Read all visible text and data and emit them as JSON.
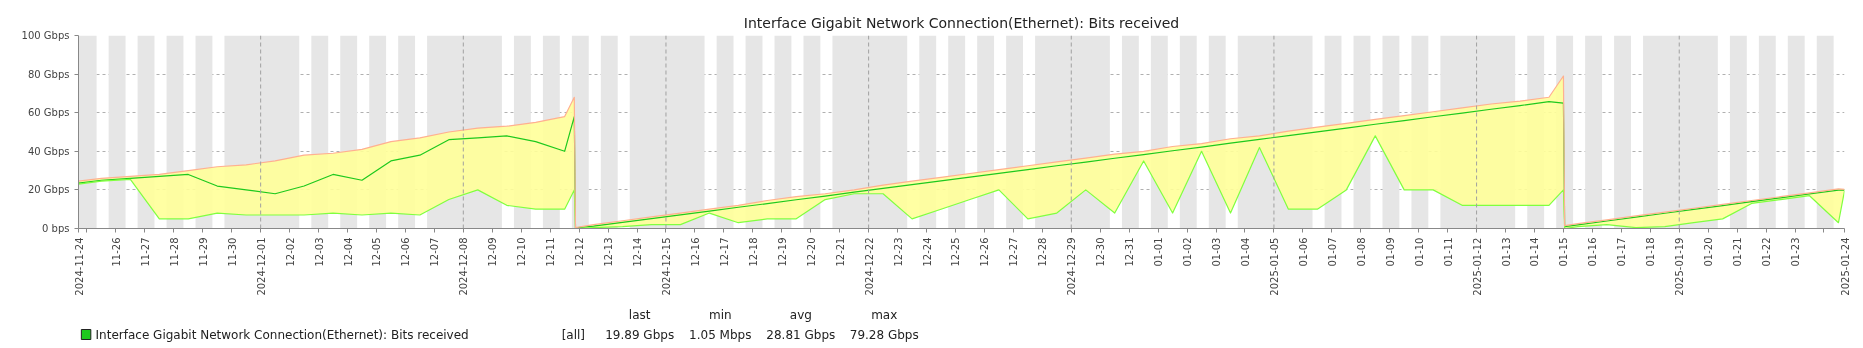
{
  "chart_data": {
    "type": "line",
    "title": "Interface Gigabit Network Connection(Ethernet): Bits received",
    "xlim": [
      "2024-11-24T17:00",
      "2025-01-24T17:00"
    ],
    "xticks": [
      {
        "value": "2024-11-24T17:00",
        "label": "2024-11-24"
      },
      {
        "value": "2024-11-25",
        "label": null
      },
      {
        "value": "2024-11-26",
        "label": "11-26"
      },
      {
        "value": "2024-11-27",
        "label": "11-27"
      },
      {
        "value": "2024-11-28",
        "label": "11-28"
      },
      {
        "value": "2024-11-29",
        "label": "11-29"
      },
      {
        "value": "2024-11-30",
        "label": "11-30"
      },
      {
        "value": "2024-12-01",
        "label": "2024-12-01"
      },
      {
        "value": "2024-12-02",
        "label": "12-02"
      },
      {
        "value": "2024-12-03",
        "label": "12-03"
      },
      {
        "value": "2024-12-04",
        "label": "12-04"
      },
      {
        "value": "2024-12-05",
        "label": "12-05"
      },
      {
        "value": "2024-12-06",
        "label": "12-06"
      },
      {
        "value": "2024-12-07",
        "label": "12-07"
      },
      {
        "value": "2024-12-08",
        "label": "2024-12-08"
      },
      {
        "value": "2024-12-09",
        "label": "12-09"
      },
      {
        "value": "2024-12-10",
        "label": "12-10"
      },
      {
        "value": "2024-12-11",
        "label": "12-11"
      },
      {
        "value": "2024-12-12",
        "label": "12-12"
      },
      {
        "value": "2024-12-13",
        "label": "12-13"
      },
      {
        "value": "2024-12-14",
        "label": "12-14"
      },
      {
        "value": "2024-12-15",
        "label": "2024-12-15"
      },
      {
        "value": "2024-12-16",
        "label": "12-16"
      },
      {
        "value": "2024-12-17",
        "label": "12-17"
      },
      {
        "value": "2024-12-18",
        "label": "12-18"
      },
      {
        "value": "2024-12-19",
        "label": "12-19"
      },
      {
        "value": "2024-12-20",
        "label": "12-20"
      },
      {
        "value": "2024-12-21",
        "label": "12-21"
      },
      {
        "value": "2024-12-22",
        "label": "2024-12-22"
      },
      {
        "value": "2024-12-23",
        "label": "12-23"
      },
      {
        "value": "2024-12-24",
        "label": "12-24"
      },
      {
        "value": "2024-12-25",
        "label": "12-25"
      },
      {
        "value": "2024-12-26",
        "label": "12-26"
      },
      {
        "value": "2024-12-27",
        "label": "12-27"
      },
      {
        "value": "2024-12-28",
        "label": "12-28"
      },
      {
        "value": "2024-12-29",
        "label": "2024-12-29"
      },
      {
        "value": "2024-12-30",
        "label": "12-30"
      },
      {
        "value": "2024-12-31",
        "label": "12-31"
      },
      {
        "value": "2025-01-01",
        "label": "01-01"
      },
      {
        "value": "2025-01-02",
        "label": "01-02"
      },
      {
        "value": "2025-01-03",
        "label": "01-03"
      },
      {
        "value": "2025-01-04",
        "label": "01-04"
      },
      {
        "value": "2025-01-05",
        "label": "2025-01-05"
      },
      {
        "value": "2025-01-06",
        "label": "01-06"
      },
      {
        "value": "2025-01-07",
        "label": "01-07"
      },
      {
        "value": "2025-01-08",
        "label": "01-08"
      },
      {
        "value": "2025-01-09",
        "label": "01-09"
      },
      {
        "value": "2025-01-10",
        "label": "01-10"
      },
      {
        "value": "2025-01-11",
        "label": "01-11"
      },
      {
        "value": "2025-01-12",
        "label": "2025-01-12"
      },
      {
        "value": "2025-01-13",
        "label": "01-13"
      },
      {
        "value": "2025-01-14",
        "label": "01-14"
      },
      {
        "value": "2025-01-15",
        "label": "01-15"
      },
      {
        "value": "2025-01-16",
        "label": "01-16"
      },
      {
        "value": "2025-01-17",
        "label": "01-17"
      },
      {
        "value": "2025-01-18",
        "label": "01-18"
      },
      {
        "value": "2025-01-19",
        "label": "2025-01-19"
      },
      {
        "value": "2025-01-20",
        "label": "01-20"
      },
      {
        "value": "2025-01-21",
        "label": "01-21"
      },
      {
        "value": "2025-01-22",
        "label": "01-22"
      },
      {
        "value": "2025-01-23",
        "label": "01-23"
      },
      {
        "value": "2025-01-24",
        "label": null
      },
      {
        "value": "2025-01-24T17:00",
        "label": "2025-01-24"
      }
    ],
    "ylim": [
      0,
      100
    ],
    "yticks": [
      {
        "value": 0,
        "label": "0 bps"
      },
      {
        "value": 20,
        "label": "20 Gbps"
      },
      {
        "value": 40,
        "label": "40 Gbps"
      },
      {
        "value": 60,
        "label": "60 Gbps"
      },
      {
        "value": 80,
        "label": "80 Gbps"
      },
      {
        "value": 100,
        "label": "100 Gbps"
      }
    ],
    "grid": "y",
    "legend": "bottom",
    "line_style": "solid",
    "x": [
      "2024-11-24T17:00",
      "2024-11-25T12:00",
      "2024-11-26T12:00",
      "2024-11-27T12:00",
      "2024-11-28T12:00",
      "2024-11-29T12:00",
      "2024-11-30T12:00",
      "2024-12-01T12:00",
      "2024-12-02T12:00",
      "2024-12-03T12:00",
      "2024-12-04T12:00",
      "2024-12-05T12:00",
      "2024-12-06T12:00",
      "2024-12-07T12:00",
      "2024-12-08T12:00",
      "2024-12-09T12:00",
      "2024-12-10T12:00",
      "2024-12-11T12:00",
      "2024-12-11T20:00",
      "2024-12-11T21:00",
      "2024-12-12T12:00",
      "2024-12-13T12:00",
      "2024-12-14T12:00",
      "2024-12-15T12:00",
      "2024-12-16T12:00",
      "2024-12-17T12:00",
      "2024-12-18T12:00",
      "2024-12-19T12:00",
      "2024-12-20T12:00",
      "2024-12-21T12:00",
      "2024-12-22T12:00",
      "2024-12-23T12:00",
      "2024-12-24T12:00",
      "2024-12-25T12:00",
      "2024-12-26T12:00",
      "2024-12-27T12:00",
      "2024-12-28T12:00",
      "2024-12-29T12:00",
      "2024-12-30T12:00",
      "2024-12-31T12:00",
      "2025-01-01T12:00",
      "2025-01-02T12:00",
      "2025-01-03T12:00",
      "2025-01-04T12:00",
      "2025-01-05T12:00",
      "2025-01-06T12:00",
      "2025-01-07T12:00",
      "2025-01-08T12:00",
      "2025-01-09T12:00",
      "2025-01-10T12:00",
      "2025-01-11T12:00",
      "2025-01-12T12:00",
      "2025-01-13T12:00",
      "2025-01-14T12:00",
      "2025-01-15T00:00",
      "2025-01-15T01:00",
      "2025-01-15T12:00",
      "2025-01-16T12:00",
      "2025-01-17T12:00",
      "2025-01-18T12:00",
      "2025-01-19T12:00",
      "2025-01-20T12:00",
      "2025-01-21T12:00",
      "2025-01-22T12:00",
      "2025-01-23T12:00",
      "2025-01-24T12:00",
      "2025-01-24T17:00"
    ],
    "series": [
      {
        "name": "Interface Gigabit Network Connection(Ethernet): Bits received",
        "color": "#1ec91e",
        "values": [
          23.5,
          25,
          26,
          27,
          28,
          22,
          20,
          18,
          22,
          28,
          25,
          35,
          38,
          46,
          47,
          48,
          45,
          40,
          58,
          0.3,
          1.2,
          3.2,
          5.1,
          7.1,
          9,
          11,
          12.9,
          14.9,
          16.8,
          18.8,
          20.8,
          22.7,
          24.7,
          26.6,
          28.6,
          30.5,
          32.5,
          34.4,
          36.4,
          38.3,
          40.3,
          42.2,
          44.2,
          46.2,
          48.1,
          50.1,
          52,
          54,
          55.9,
          57.9,
          59.8,
          61.8,
          63.7,
          65.7,
          65,
          1,
          1.9,
          3.9,
          5.9,
          7.9,
          9.9,
          11.9,
          13.9,
          15.9,
          17.9,
          19.9,
          19.9
        ],
        "lower": [
          23,
          24.5,
          25.5,
          5,
          5,
          8,
          7,
          7,
          7,
          8,
          7,
          8,
          7,
          15,
          20,
          12,
          10,
          10,
          20,
          0,
          0.5,
          1,
          2,
          2,
          8,
          3,
          5,
          5,
          15,
          18,
          18,
          5,
          10,
          15,
          20,
          5,
          8,
          20,
          8,
          35,
          8,
          40,
          8,
          42,
          10,
          10,
          20,
          48,
          20,
          20,
          12,
          12,
          12,
          12,
          20,
          0,
          1,
          2,
          0.5,
          1,
          3,
          5,
          13,
          15,
          17,
          3,
          19.5
        ],
        "upper": [
          24.5,
          26,
          27,
          28,
          30,
          32,
          33,
          35,
          38,
          39,
          41,
          45,
          47,
          50,
          52,
          53,
          55,
          58,
          68,
          0.5,
          2,
          4,
          6,
          8,
          10,
          12,
          14.5,
          16.5,
          18,
          20,
          22.5,
          24.5,
          26.5,
          28.5,
          30.5,
          32.5,
          34.5,
          36.5,
          38.5,
          40,
          42.5,
          44,
          46.5,
          48,
          50.5,
          52.5,
          54.5,
          56.5,
          58.5,
          60.5,
          62.5,
          64.5,
          66,
          68,
          79,
          1.5,
          2.5,
          4.5,
          6.5,
          8.5,
          10.5,
          12.5,
          14.5,
          16.5,
          18.5,
          20.5,
          20.3
        ]
      },
      {
        "color": "#80ff40",
        "values": [
          23,
          24.5,
          25.5,
          5,
          5,
          8,
          7,
          7,
          7,
          8,
          7,
          8,
          7,
          15,
          20,
          12,
          10,
          10,
          20,
          0,
          0.5,
          1,
          2,
          2,
          8,
          3,
          5,
          5,
          15,
          18,
          18,
          5,
          10,
          15,
          20,
          5,
          8,
          20,
          8,
          35,
          8,
          40,
          8,
          42,
          10,
          10,
          20,
          48,
          20,
          20,
          12,
          12,
          12,
          12,
          20,
          0,
          1,
          2,
          0.5,
          1,
          3,
          5,
          13,
          15,
          17,
          3,
          19.5
        ]
      },
      {
        "color": "#ffb090",
        "values": [
          24.5,
          26,
          27,
          28,
          30,
          32,
          33,
          35,
          38,
          39,
          41,
          45,
          47,
          50,
          52,
          53,
          55,
          58,
          68,
          0.5,
          2,
          4,
          6,
          8,
          10,
          12,
          14.5,
          16.5,
          18,
          20,
          22.5,
          24.5,
          26.5,
          28.5,
          30.5,
          32.5,
          34.5,
          36.5,
          38.5,
          40,
          42.5,
          44,
          46.5,
          48,
          50.5,
          52.5,
          54.5,
          56.5,
          58.5,
          60.5,
          62.5,
          64.5,
          66,
          68,
          79,
          1.5,
          2.5,
          4.5,
          6.5,
          8.5,
          10.5,
          12.5,
          14.5,
          16.5,
          18.5,
          20.5,
          20.3
        ]
      }
    ],
    "ref_lines": [
      {
        "axis": "x",
        "value": "2024-12-01",
        "color": "#a0a0a0",
        "line_style": "dashed"
      },
      {
        "axis": "x",
        "value": "2024-12-08",
        "color": "#a0a0a0",
        "line_style": "dashed"
      },
      {
        "axis": "x",
        "value": "2024-12-15",
        "color": "#a0a0a0",
        "line_style": "dashed"
      },
      {
        "axis": "x",
        "value": "2024-12-22",
        "color": "#a0a0a0",
        "line_style": "dashed"
      },
      {
        "axis": "x",
        "value": "2024-12-29",
        "color": "#a0a0a0",
        "line_style": "dashed"
      },
      {
        "axis": "x",
        "value": "2025-01-05",
        "color": "#a0a0a0",
        "line_style": "dashed"
      },
      {
        "axis": "x",
        "value": "2025-01-12",
        "color": "#a0a0a0",
        "line_style": "dashed"
      },
      {
        "axis": "x",
        "value": "2025-01-19",
        "color": "#a0a0a0",
        "line_style": "dashed"
      }
    ],
    "bands": [
      {
        "axis": "x",
        "from": "2024-11-24T17:00",
        "to": "2024-11-25T08:00"
      },
      {
        "axis": "x",
        "from": "2024-11-25T18:00",
        "to": "2024-11-26T08:00"
      },
      {
        "axis": "x",
        "from": "2024-11-26T18:00",
        "to": "2024-11-27T08:00"
      },
      {
        "axis": "x",
        "from": "2024-11-27T18:00",
        "to": "2024-11-28T08:00"
      },
      {
        "axis": "x",
        "from": "2024-11-28T18:00",
        "to": "2024-11-29T08:00"
      },
      {
        "axis": "x",
        "from": "2024-11-29T18:00",
        "to": "2024-12-02T08:00"
      },
      {
        "axis": "x",
        "from": "2024-12-02T18:00",
        "to": "2024-12-03T08:00"
      },
      {
        "axis": "x",
        "from": "2024-12-03T18:00",
        "to": "2024-12-04T08:00"
      },
      {
        "axis": "x",
        "from": "2024-12-04T18:00",
        "to": "2024-12-05T08:00"
      },
      {
        "axis": "x",
        "from": "2024-12-05T18:00",
        "to": "2024-12-06T08:00"
      },
      {
        "axis": "x",
        "from": "2024-12-06T18:00",
        "to": "2024-12-09T08:00"
      },
      {
        "axis": "x",
        "from": "2024-12-09T18:00",
        "to": "2024-12-10T08:00"
      },
      {
        "axis": "x",
        "from": "2024-12-10T18:00",
        "to": "2024-12-11T08:00"
      },
      {
        "axis": "x",
        "from": "2024-12-11T18:00",
        "to": "2024-12-12T08:00"
      },
      {
        "axis": "x",
        "from": "2024-12-12T18:00",
        "to": "2024-12-13T08:00"
      },
      {
        "axis": "x",
        "from": "2024-12-13T18:00",
        "to": "2024-12-16T08:00"
      },
      {
        "axis": "x",
        "from": "2024-12-16T18:00",
        "to": "2024-12-17T08:00"
      },
      {
        "axis": "x",
        "from": "2024-12-17T18:00",
        "to": "2024-12-18T08:00"
      },
      {
        "axis": "x",
        "from": "2024-12-18T18:00",
        "to": "2024-12-19T08:00"
      },
      {
        "axis": "x",
        "from": "2024-12-19T18:00",
        "to": "2024-12-20T08:00"
      },
      {
        "axis": "x",
        "from": "2024-12-20T18:00",
        "to": "2024-12-23T08:00"
      },
      {
        "axis": "x",
        "from": "2024-12-23T18:00",
        "to": "2024-12-24T08:00"
      },
      {
        "axis": "x",
        "from": "2024-12-24T18:00",
        "to": "2024-12-25T08:00"
      },
      {
        "axis": "x",
        "from": "2024-12-25T18:00",
        "to": "2024-12-26T08:00"
      },
      {
        "axis": "x",
        "from": "2024-12-26T18:00",
        "to": "2024-12-27T08:00"
      },
      {
        "axis": "x",
        "from": "2024-12-27T18:00",
        "to": "2024-12-30T08:00"
      },
      {
        "axis": "x",
        "from": "2024-12-30T18:00",
        "to": "2024-12-31T08:00"
      },
      {
        "axis": "x",
        "from": "2024-12-31T18:00",
        "to": "2025-01-01T08:00"
      },
      {
        "axis": "x",
        "from": "2025-01-01T18:00",
        "to": "2025-01-02T08:00"
      },
      {
        "axis": "x",
        "from": "2025-01-02T18:00",
        "to": "2025-01-03T08:00"
      },
      {
        "axis": "x",
        "from": "2025-01-03T18:00",
        "to": "2025-01-06T08:00"
      },
      {
        "axis": "x",
        "from": "2025-01-06T18:00",
        "to": "2025-01-07T08:00"
      },
      {
        "axis": "x",
        "from": "2025-01-07T18:00",
        "to": "2025-01-08T08:00"
      },
      {
        "axis": "x",
        "from": "2025-01-08T18:00",
        "to": "2025-01-09T08:00"
      },
      {
        "axis": "x",
        "from": "2025-01-09T18:00",
        "to": "2025-01-10T08:00"
      },
      {
        "axis": "x",
        "from": "2025-01-10T18:00",
        "to": "2025-01-13T08:00"
      },
      {
        "axis": "x",
        "from": "2025-01-13T18:00",
        "to": "2025-01-14T08:00"
      },
      {
        "axis": "x",
        "from": "2025-01-14T18:00",
        "to": "2025-01-15T08:00"
      },
      {
        "axis": "x",
        "from": "2025-01-15T18:00",
        "to": "2025-01-16T08:00"
      },
      {
        "axis": "x",
        "from": "2025-01-16T18:00",
        "to": "2025-01-17T08:00"
      },
      {
        "axis": "x",
        "from": "2025-01-17T18:00",
        "to": "2025-01-20T08:00"
      },
      {
        "axis": "x",
        "from": "2025-01-20T18:00",
        "to": "2025-01-21T08:00"
      },
      {
        "axis": "x",
        "from": "2025-01-21T18:00",
        "to": "2025-01-22T08:00"
      },
      {
        "axis": "x",
        "from": "2025-01-22T18:00",
        "to": "2025-01-23T08:00"
      },
      {
        "axis": "x",
        "from": "2025-01-23T18:00",
        "to": "2025-01-24T08:00"
      }
    ],
    "annotations": [
      "[all]",
      "last",
      "min",
      "avg",
      "max",
      "19.89 Gbps",
      "1.05 Mbps",
      "28.81 Gbps",
      "79.28 Gbps"
    ]
  }
}
